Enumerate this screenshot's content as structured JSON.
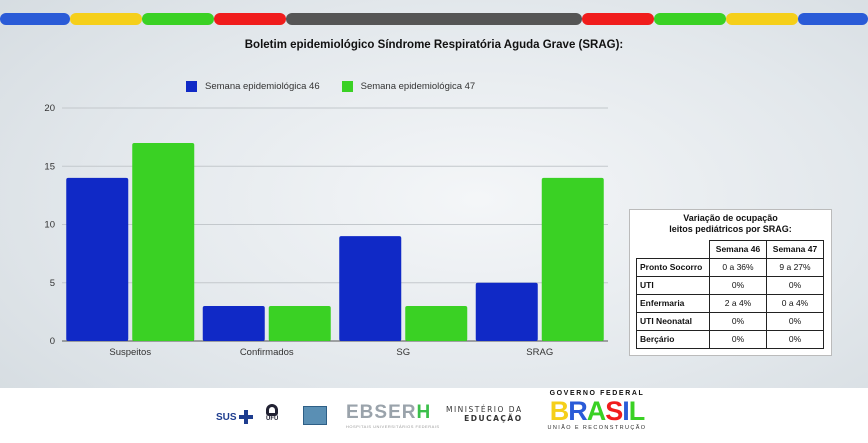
{
  "page": {
    "title": "Boletim epidemiológico Síndrome Respiratória Aguda Grave (SRAG):",
    "colors": {
      "series_1": "#1029c6",
      "series_2": "#3ad124",
      "stripe": [
        "#2a5bd7",
        "#f5cf1a",
        "#3ad124",
        "#f01c1c",
        "#555555",
        "#f01c1c",
        "#3ad124",
        "#f5cf1a",
        "#2a5bd7"
      ]
    }
  },
  "chart_data": {
    "type": "bar",
    "title": "Boletim epidemiológico Síndrome Respiratória Aguda Grave (SRAG):",
    "categories": [
      "Suspeitos",
      "Confirmados",
      "SG",
      "SRAG"
    ],
    "series": [
      {
        "name": "Semana epidemiológica 46",
        "values": [
          14,
          3,
          9,
          5
        ]
      },
      {
        "name": "Semana epidemiológica 47",
        "values": [
          17,
          3,
          3,
          14
        ]
      }
    ],
    "ylim": [
      0,
      20
    ],
    "yticks": [
      0,
      5,
      10,
      15,
      20
    ],
    "xlabel": "",
    "ylabel": "",
    "grid": true,
    "legend_position": "top"
  },
  "occupancy_table": {
    "title_line1": "Variação de ocupação",
    "title_line2": "leitos pediátricos por SRAG:",
    "headers": [
      "Semana 46",
      "Semana 47"
    ],
    "rows": [
      {
        "label": "Pronto Socorro",
        "s46": "0 a 36%",
        "s47": "9 a 27%"
      },
      {
        "label": "UTI",
        "s46": "0%",
        "s47": "0%"
      },
      {
        "label": "Enfermaria",
        "s46": "2 a 4%",
        "s47": "0 a 4%"
      },
      {
        "label": "UTI Neonatal",
        "s46": "0%",
        "s47": "0%"
      },
      {
        "label": "Berçário",
        "s46": "0%",
        "s47": "0%"
      }
    ]
  },
  "footer": {
    "sus": "SUS",
    "ufu": "UFU",
    "ebserh_part1": "EBSER",
    "ebserh_part2": "H",
    "ebserh_sub": "HOSPITAIS UNIVERSITÁRIOS FEDERAIS",
    "ministerio_l1": "MINISTÉRIO DA",
    "ministerio_l2": "EDUCAÇÃO",
    "gov_l1": "GOVERNO FEDERAL",
    "gov_brasil": "BRASIL",
    "gov_l3": "UNIÃO E RECONSTRUÇÃO"
  }
}
